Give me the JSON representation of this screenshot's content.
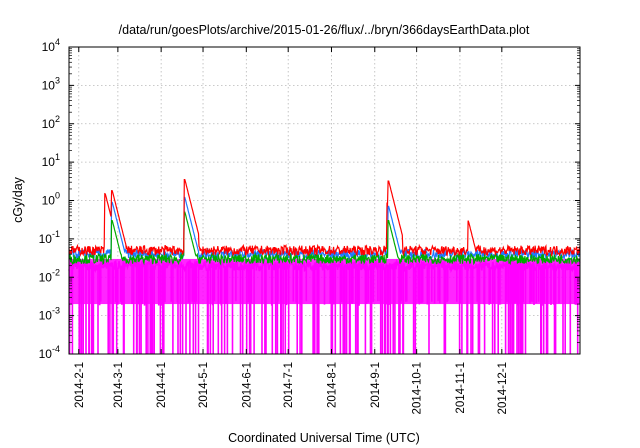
{
  "chart_data": {
    "type": "line",
    "title": "/data/run/goesPlots/archive/2015-01-26/flux/../bryn/366daysEarthData.plot",
    "xlabel": "Coordinated Universal Time (UTC)",
    "ylabel": "cGy/day",
    "yscale": "log",
    "ylim": [
      0.0001,
      10000
    ],
    "xlim": [
      "2014-01-25",
      "2015-01-26"
    ],
    "y_ticks": [
      {
        "base": "10",
        "exp": "-4"
      },
      {
        "base": "10",
        "exp": "-3"
      },
      {
        "base": "10",
        "exp": "-2"
      },
      {
        "base": "10",
        "exp": "-1"
      },
      {
        "base": "10",
        "exp": "0"
      },
      {
        "base": "10",
        "exp": "1"
      },
      {
        "base": "10",
        "exp": "2"
      },
      {
        "base": "10",
        "exp": "3"
      },
      {
        "base": "10",
        "exp": "4"
      }
    ],
    "x_ticks": [
      "2014-2-1",
      "2014-3-1",
      "2014-4-1",
      "2014-5-1",
      "2014-6-1",
      "2014-7-1",
      "2014-8-1",
      "2014-9-1",
      "2014-10-1",
      "2014-11-1",
      "2014-12-1"
    ],
    "grid": true,
    "legend": "none",
    "series": [
      {
        "color": "#ff0000",
        "baseline": 0.05,
        "peaks": [
          {
            "date": "2014-02-20",
            "value": 1.5
          },
          {
            "date": "2014-02-25",
            "value": 1.8
          },
          {
            "date": "2014-04-18",
            "value": 3.5
          },
          {
            "date": "2014-09-10",
            "value": 0.8
          },
          {
            "date": "2014-09-11",
            "value": 3.2
          },
          {
            "date": "2014-11-07",
            "value": 0.3
          }
        ]
      },
      {
        "color": "#00aa00",
        "baseline": 0.03,
        "peaks": [
          {
            "date": "2014-02-25",
            "value": 0.3
          },
          {
            "date": "2014-04-18",
            "value": 0.5
          },
          {
            "date": "2014-09-11",
            "value": 0.3
          }
        ]
      },
      {
        "color": "#1e78ff",
        "baseline": 0.04,
        "peaks": [
          {
            "date": "2014-02-25",
            "value": 0.9
          },
          {
            "date": "2014-04-18",
            "value": 1.2
          },
          {
            "date": "2014-09-11",
            "value": 0.7
          }
        ]
      },
      {
        "color": "#ff00ff",
        "baseline": 0.02,
        "floor": 0.002,
        "peaks": []
      }
    ]
  }
}
